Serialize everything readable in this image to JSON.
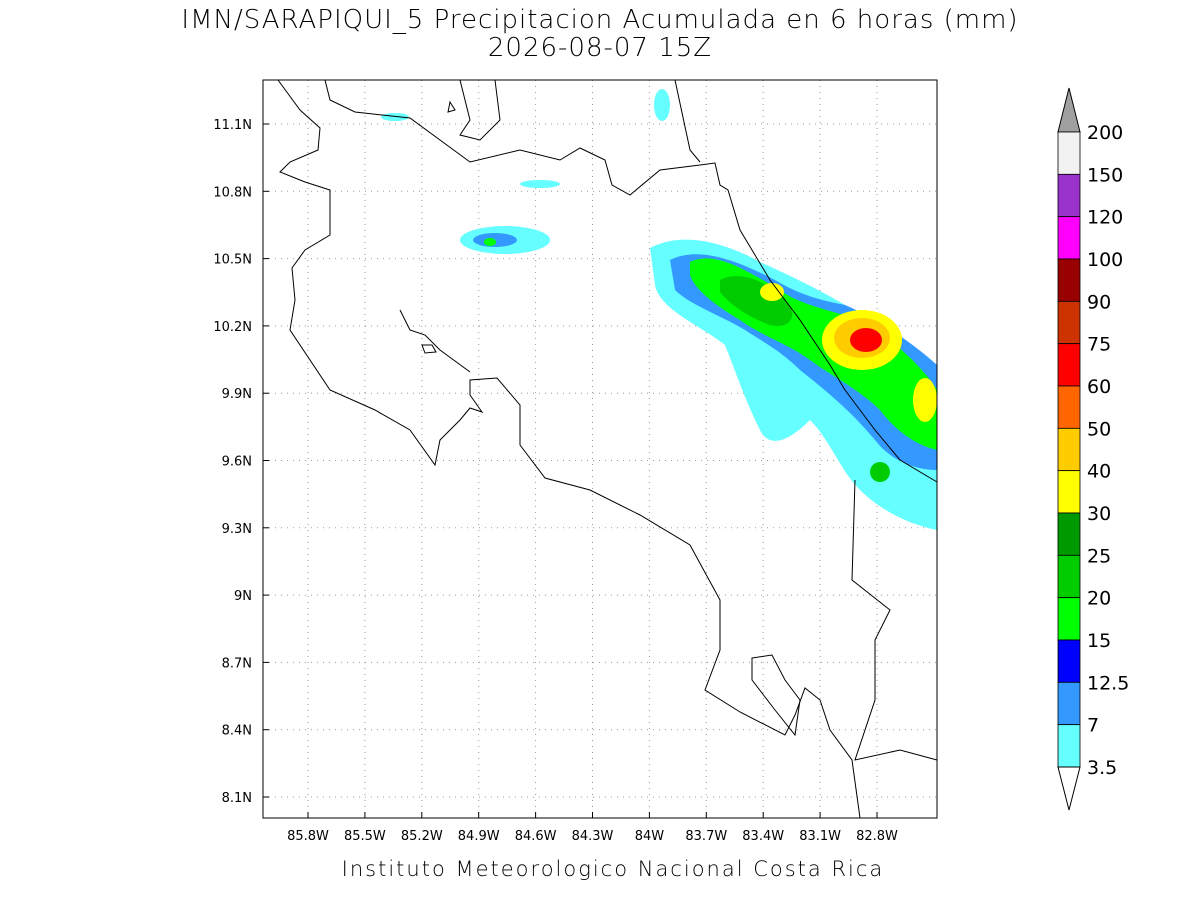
{
  "header": {
    "title": "IMN/SARAPIQUI_5 Precipitacion Acumulada en 6 horas (mm)",
    "subtitle": "2026-08-07 15Z"
  },
  "map": {
    "lon_labels": [
      "85.8W",
      "85.5W",
      "85.2W",
      "84.9W",
      "84.6W",
      "84.3W",
      "84W",
      "83.7W",
      "83.4W",
      "83.1W",
      "82.8W"
    ],
    "lat_labels": [
      "11.1N",
      "10.8N",
      "10.5N",
      "10.2N",
      "9.9N",
      "9.6N",
      "9.3N",
      "9N",
      "8.7N",
      "8.4N",
      "8.1N"
    ]
  },
  "colorbar": {
    "labels": [
      "200",
      "150",
      "120",
      "100",
      "90",
      "75",
      "60",
      "50",
      "40",
      "30",
      "25",
      "20",
      "15",
      "12.5",
      "7",
      "3.5"
    ],
    "colors": [
      "#f2f2f2",
      "#9933cc",
      "#ff00ff",
      "#990000",
      "#cc3300",
      "#ff0000",
      "#ff6600",
      "#ffcc00",
      "#ffff00",
      "#009900",
      "#00cc00",
      "#00ff00",
      "#0000ff",
      "#3399ff",
      "#66ffff"
    ],
    "over_color": "#a0a0a0",
    "under_color": "#ffffff"
  },
  "footer": {
    "credit": "Instituto Meteorologico Nacional Costa Rica"
  }
}
